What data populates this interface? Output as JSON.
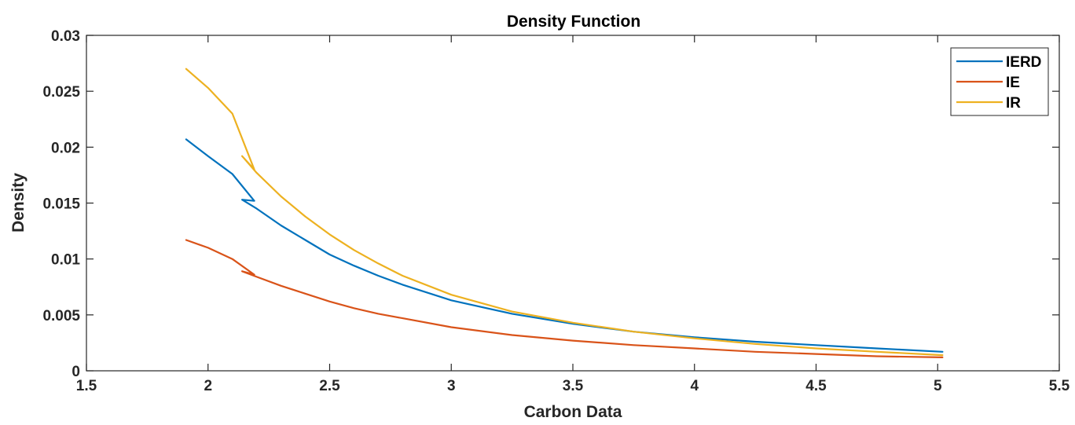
{
  "chart_data": {
    "type": "line",
    "title": "Density Function",
    "xlabel": "Carbon Data",
    "ylabel": "Density",
    "xlim": [
      1.5,
      5.5
    ],
    "ylim": [
      0,
      0.03
    ],
    "xticks": [
      "1.5",
      "2",
      "2.5",
      "3",
      "3.5",
      "4",
      "4.5",
      "5",
      "5.5"
    ],
    "yticks": [
      "0",
      "0.005",
      "0.01",
      "0.015",
      "0.02",
      "0.025",
      "0.03"
    ],
    "xtick_values": [
      1.5,
      2,
      2.5,
      3,
      3.5,
      4,
      4.5,
      5,
      5.5
    ],
    "ytick_values": [
      0,
      0.005,
      0.01,
      0.015,
      0.02,
      0.025,
      0.03
    ],
    "grid": false,
    "legend_position": "top-right",
    "series": [
      {
        "name": "IERD",
        "color": "#0072BD",
        "points": [
          [
            1.91,
            0.0207
          ],
          [
            2.0,
            0.0192
          ],
          [
            2.1,
            0.0176
          ],
          [
            2.19,
            0.0152
          ],
          [
            2.14,
            0.0153
          ],
          [
            2.2,
            0.0145
          ],
          [
            2.3,
            0.013
          ],
          [
            2.4,
            0.0117
          ],
          [
            2.5,
            0.0104
          ],
          [
            2.6,
            0.0094
          ],
          [
            2.7,
            0.0085
          ],
          [
            2.8,
            0.0077
          ],
          [
            3.0,
            0.0063
          ],
          [
            3.25,
            0.0051
          ],
          [
            3.5,
            0.0042
          ],
          [
            3.75,
            0.0035
          ],
          [
            4.0,
            0.003
          ],
          [
            4.25,
            0.0026
          ],
          [
            4.5,
            0.0023
          ],
          [
            4.75,
            0.002
          ],
          [
            5.02,
            0.0017
          ]
        ]
      },
      {
        "name": "IE",
        "color": "#D95319",
        "points": [
          [
            1.91,
            0.0117
          ],
          [
            2.0,
            0.011
          ],
          [
            2.1,
            0.01
          ],
          [
            2.19,
            0.0086
          ],
          [
            2.14,
            0.0089
          ],
          [
            2.2,
            0.0084
          ],
          [
            2.3,
            0.0076
          ],
          [
            2.4,
            0.0069
          ],
          [
            2.5,
            0.0062
          ],
          [
            2.6,
            0.0056
          ],
          [
            2.7,
            0.0051
          ],
          [
            2.8,
            0.0047
          ],
          [
            3.0,
            0.0039
          ],
          [
            3.25,
            0.0032
          ],
          [
            3.5,
            0.0027
          ],
          [
            3.75,
            0.0023
          ],
          [
            4.0,
            0.002
          ],
          [
            4.25,
            0.0017
          ],
          [
            4.5,
            0.0015
          ],
          [
            4.75,
            0.0013
          ],
          [
            5.02,
            0.0012
          ]
        ]
      },
      {
        "name": "IR",
        "color": "#EDB120",
        "points": [
          [
            1.91,
            0.027
          ],
          [
            2.0,
            0.0253
          ],
          [
            2.1,
            0.023
          ],
          [
            2.19,
            0.018
          ],
          [
            2.14,
            0.0192
          ],
          [
            2.2,
            0.0177
          ],
          [
            2.3,
            0.0156
          ],
          [
            2.4,
            0.0138
          ],
          [
            2.5,
            0.0122
          ],
          [
            2.6,
            0.0108
          ],
          [
            2.7,
            0.0096
          ],
          [
            2.8,
            0.0085
          ],
          [
            3.0,
            0.0068
          ],
          [
            3.25,
            0.0053
          ],
          [
            3.5,
            0.0043
          ],
          [
            3.75,
            0.0035
          ],
          [
            4.0,
            0.0029
          ],
          [
            4.25,
            0.0024
          ],
          [
            4.5,
            0.002
          ],
          [
            4.75,
            0.0017
          ],
          [
            5.02,
            0.0014
          ]
        ]
      }
    ]
  }
}
